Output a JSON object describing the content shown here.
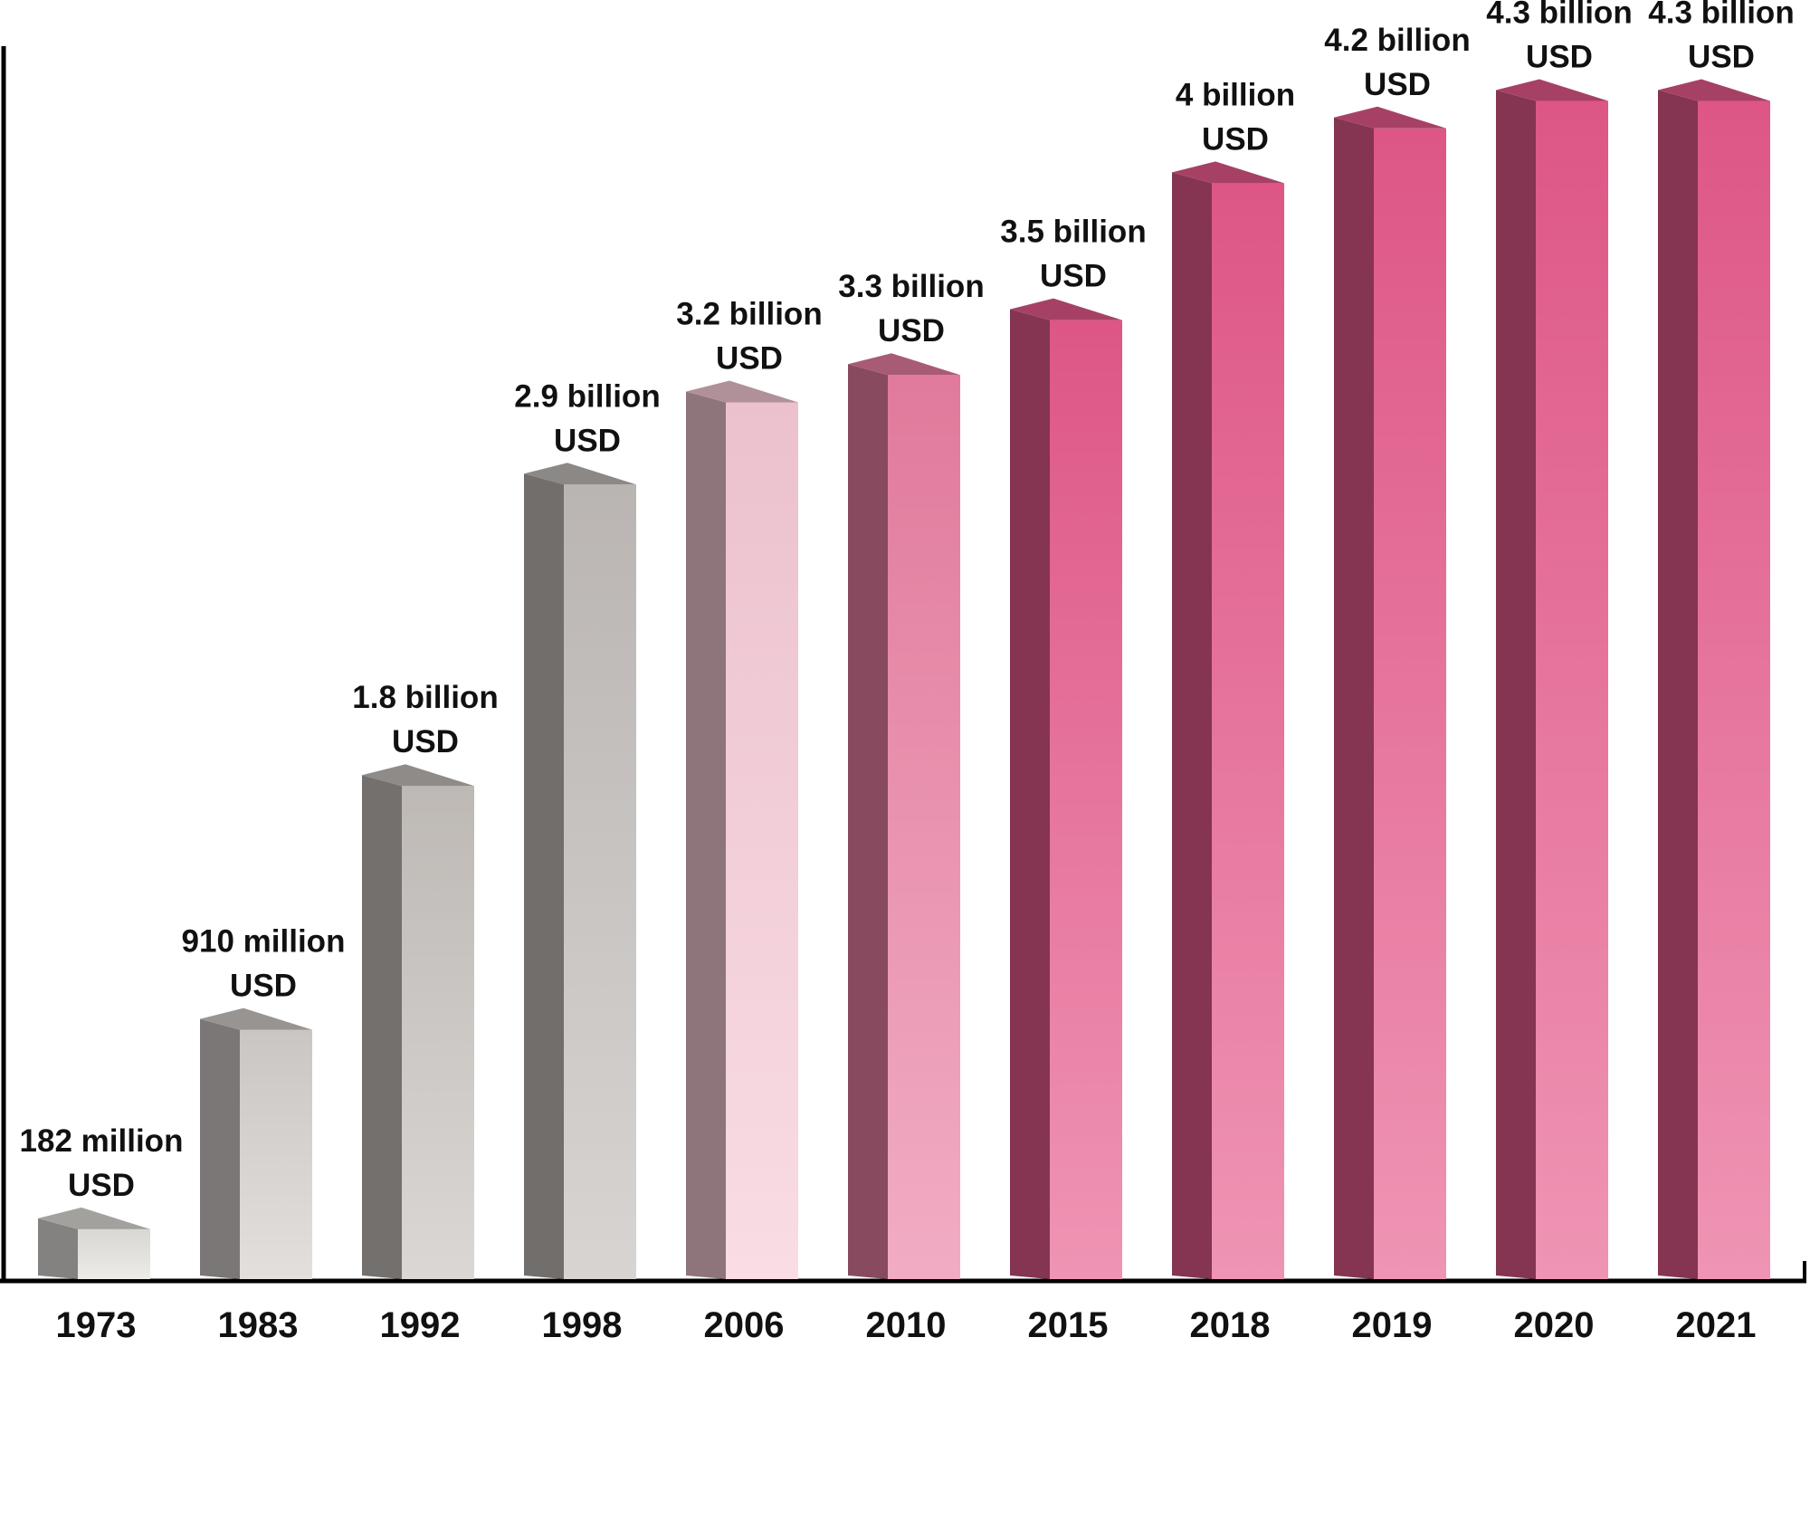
{
  "chart_data": {
    "type": "bar3d",
    "categories": [
      "1973",
      "1983",
      "1992",
      "1998",
      "2006",
      "2010",
      "2015",
      "2018",
      "2019",
      "2020",
      "2021"
    ],
    "values": [
      182000000,
      910000000,
      1800000000,
      2900000000,
      3200000000,
      3300000000,
      3500000000,
      4000000000,
      4200000000,
      4300000000,
      4300000000
    ],
    "value_labels": [
      "182 million USD",
      "910 million USD",
      "1.8 billion USD",
      "2.9 billion USD",
      "3.2 billion USD",
      "3.3 billion USD",
      "3.5 billion USD",
      "4 billion USD",
      "4.2 billion USD",
      "4.3 billion USD",
      "4.3 billion USD"
    ],
    "colors": [
      "#e2e0dc",
      "#d2cecb",
      "#c6c1bd",
      "#c2bdb9",
      "#f5c9d6",
      "#ea7fa2",
      "#e65a8c",
      "#e65a8c",
      "#e65a8c",
      "#e65a8c",
      "#e65a8c"
    ],
    "ylim": [
      0,
      4500000000
    ]
  }
}
